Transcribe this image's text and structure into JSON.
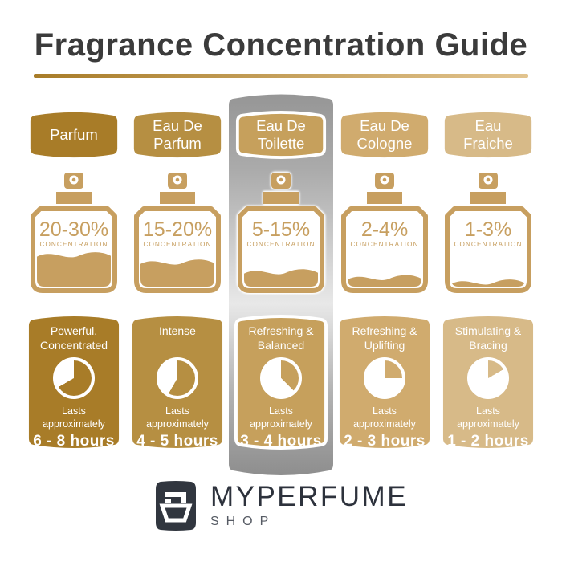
{
  "title": "Fragrance Concentration Guide",
  "divider": {
    "from": "#a87c28",
    "to": "#e2c48f"
  },
  "bottle_color": "#c79f60",
  "highlight": {
    "silver_top": "#969696",
    "silver_light": "#e8e8e8",
    "silver_bottom": "#8e8e8e"
  },
  "columns": [
    {
      "name": "Parfum",
      "concentration": "20-30%",
      "concentration_label": "CONCENTRATION",
      "character": "Powerful, Concentrated",
      "lasts_label": "Lasts approximately",
      "duration": "6 - 8 hours",
      "color": "#a87c28",
      "clock_gold_deg": 240,
      "bottle_fill_percent": 45,
      "highlighted": false
    },
    {
      "name": "Eau De Parfum",
      "concentration": "15-20%",
      "concentration_label": "CONCENTRATION",
      "character": "Intense",
      "lasts_label": "Lasts approximately",
      "duration": "4 - 5 hours",
      "color": "#b68f42",
      "clock_gold_deg": 210,
      "bottle_fill_percent": 35,
      "highlighted": false
    },
    {
      "name": "Eau De Toilette",
      "concentration": "5-15%",
      "concentration_label": "CONCENTRATION",
      "character": "Refreshing & Balanced",
      "lasts_label": "Lasts approximately",
      "duration": "3 - 4 hours",
      "color": "#c6a05c",
      "clock_gold_deg": 135,
      "bottle_fill_percent": 22,
      "highlighted": true
    },
    {
      "name": "Eau De Cologne",
      "concentration": "2-4%",
      "concentration_label": "CONCENTRATION",
      "character": "Refreshing & Uplifting",
      "lasts_label": "Lasts approximately",
      "duration": "2 - 3 hours",
      "color": "#d0ab6e",
      "clock_gold_deg": 90,
      "bottle_fill_percent": 14,
      "highlighted": false
    },
    {
      "name": "Eau Fraiche",
      "concentration": "1-3%",
      "concentration_label": "CONCENTRATION",
      "character": "Stimulating & Bracing",
      "lasts_label": "Lasts approximately",
      "duration": "1 - 2 hours",
      "color": "#d7ba88",
      "clock_gold_deg": 60,
      "bottle_fill_percent": 8,
      "highlighted": false
    }
  ],
  "logo": {
    "brand": "MYPERFUME",
    "sub": "SHOP",
    "icon": "perfume-bottle-logo",
    "icon_bg": "#31363f"
  }
}
